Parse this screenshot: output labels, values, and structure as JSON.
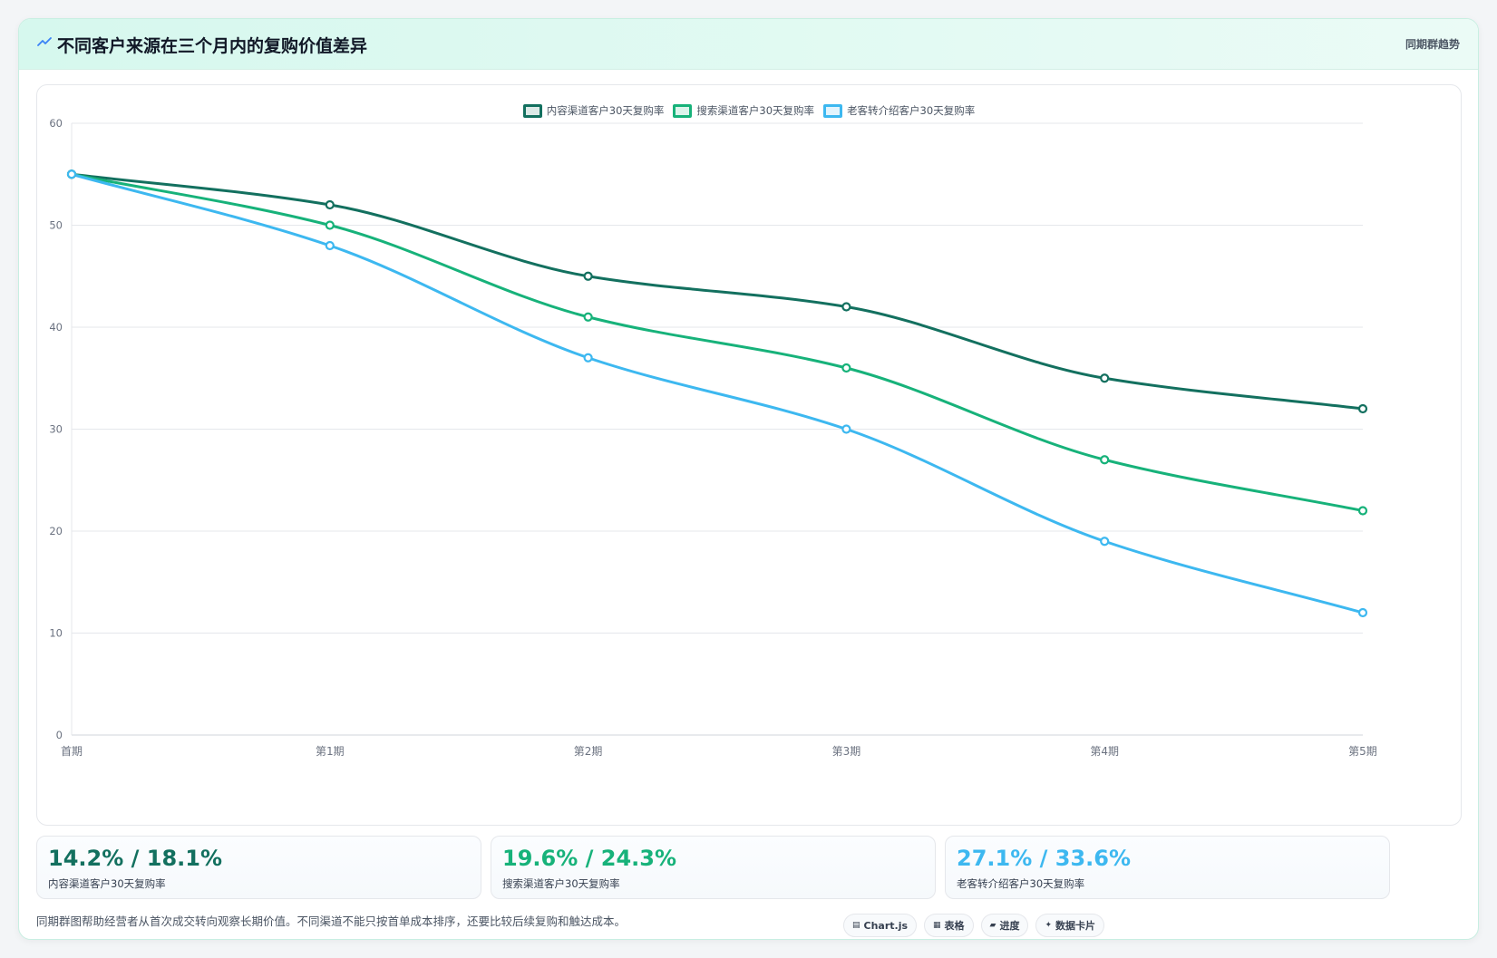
{
  "header": {
    "title": "不同客户来源在三个月内的复购价值差异",
    "tag": "同期群趋势",
    "icon": "trend-icon"
  },
  "colors": {
    "content": "#13705f",
    "search": "#17b27a",
    "referral": "#3db8f0",
    "grid": "#e5e7eb",
    "tick": "#6b7280"
  },
  "chart_data": {
    "type": "line",
    "categories": [
      "首期",
      "第1期",
      "第2期",
      "第3期",
      "第4期",
      "第5期"
    ],
    "series": [
      {
        "name": "内容渠道客户30天复购率",
        "color": "#13705f",
        "values": [
          55,
          52,
          45,
          42,
          35,
          32
        ]
      },
      {
        "name": "搜索渠道客户30天复购率",
        "color": "#17b27a",
        "values": [
          55,
          50,
          41,
          36,
          27,
          22
        ]
      },
      {
        "name": "老客转介绍客户30天复购率",
        "color": "#3db8f0",
        "values": [
          55,
          48,
          37,
          30,
          19,
          12
        ]
      }
    ],
    "ylim": [
      0,
      60
    ],
    "yticks": [
      0,
      10,
      20,
      30,
      40,
      50,
      60
    ],
    "grid": true,
    "legend": "top-center"
  },
  "cards": [
    {
      "value": "14.2% / 18.1%",
      "label": "内容渠道客户30天复购率",
      "color": "#13705f"
    },
    {
      "value": "19.6% / 24.3%",
      "label": "搜索渠道客户30天复购率",
      "color": "#17b27a"
    },
    {
      "value": "27.1% / 33.6%",
      "label": "老客转介绍客户30天复购率",
      "color": "#3db8f0"
    }
  ],
  "footer": {
    "note": "同期群图帮助经营者从首次成交转向观察长期价值。不同渠道不能只按首单成本排序，还要比较后续复购和触达成本。",
    "chips": [
      {
        "label": "Chart.js",
        "icon": "chart-icon",
        "glyph": "▤"
      },
      {
        "label": "表格",
        "icon": "table-icon",
        "glyph": "▦"
      },
      {
        "label": "进度",
        "icon": "progress-icon",
        "glyph": "▰"
      },
      {
        "label": "数据卡片",
        "icon": "sparkle-icon",
        "glyph": "✦"
      }
    ]
  }
}
